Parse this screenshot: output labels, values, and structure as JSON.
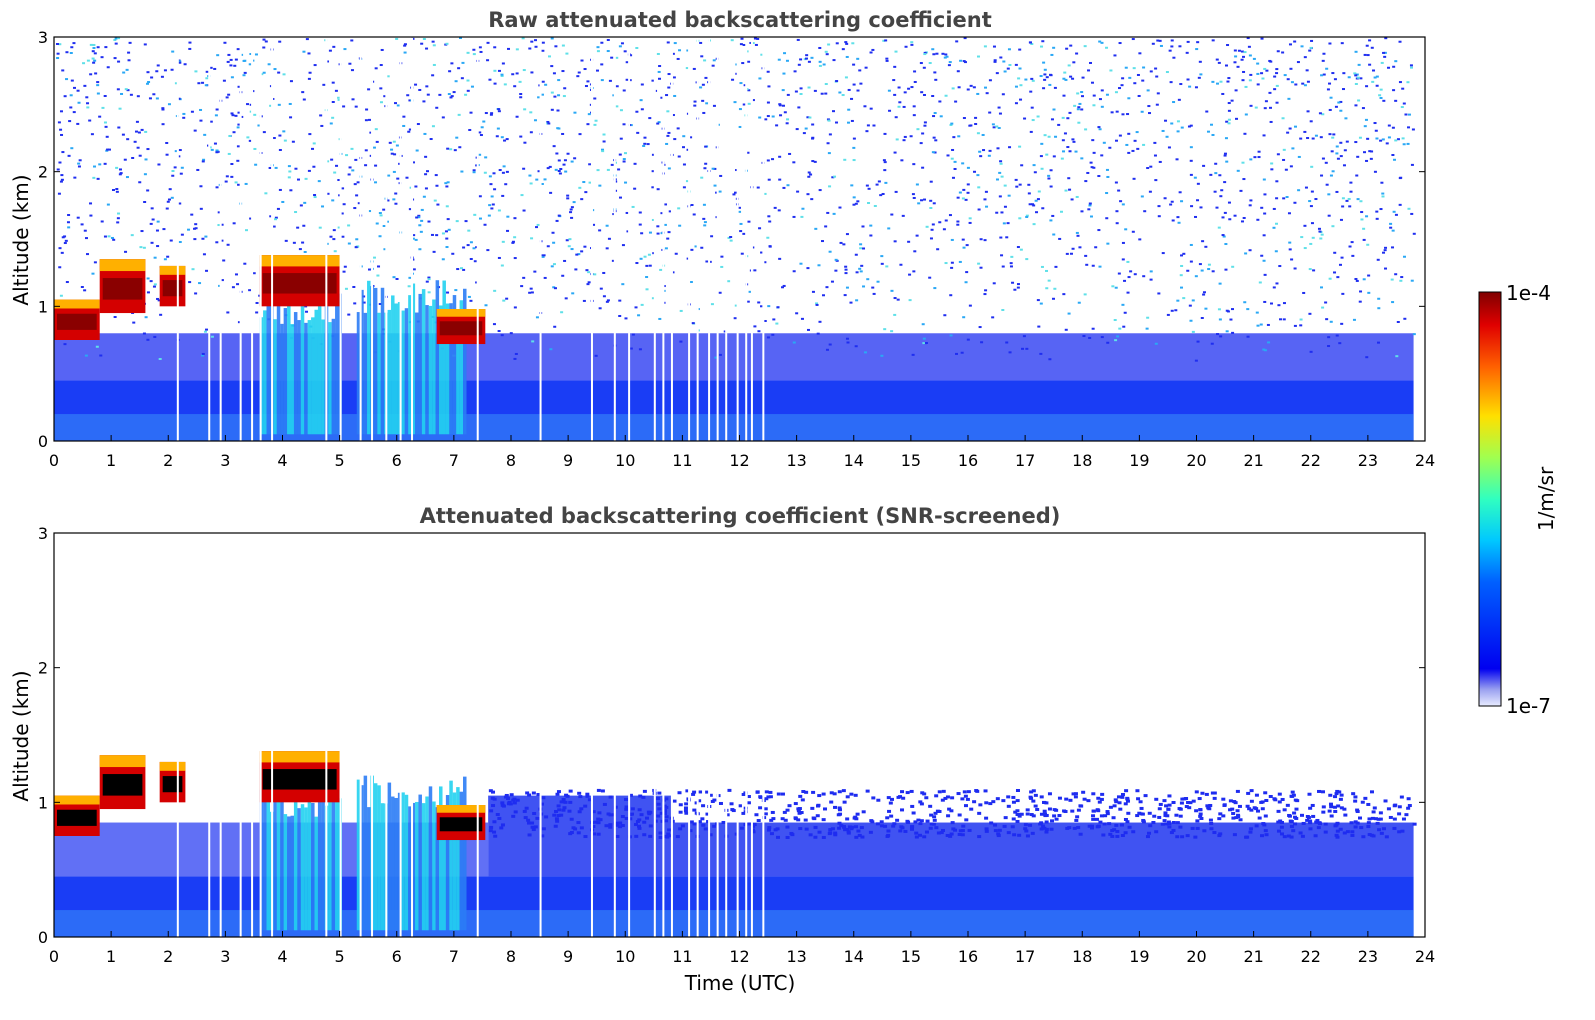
{
  "chart_data": [
    {
      "type": "heatmap",
      "title": "Raw attenuated backscattering coefficient",
      "ylabel": "Altitude (km)",
      "xlabel": "",
      "xlim": [
        0,
        24
      ],
      "ylim": [
        0,
        3
      ],
      "x_ticks": [
        "0",
        "1",
        "2",
        "3",
        "4",
        "5",
        "6",
        "7",
        "8",
        "9",
        "10",
        "11",
        "12",
        "13",
        "14",
        "15",
        "16",
        "17",
        "18",
        "19",
        "20",
        "21",
        "22",
        "23",
        "24"
      ],
      "y_ticks": [
        "0",
        "1",
        "2",
        "3"
      ],
      "data_end_hour": 23.8,
      "clouds": [
        {
          "x0": 0.0,
          "x1": 0.8,
          "base_km": 0.75,
          "top_km": 1.05
        },
        {
          "x0": 0.8,
          "x1": 1.6,
          "base_km": 0.95,
          "top_km": 1.35
        },
        {
          "x0": 1.85,
          "x1": 2.3,
          "base_km": 1.0,
          "top_km": 1.3
        },
        {
          "x0": 3.6,
          "x1": 5.0,
          "base_km": 1.0,
          "top_km": 1.38
        },
        {
          "x0": 6.7,
          "x1": 7.55,
          "base_km": 0.72,
          "top_km": 0.98
        }
      ],
      "precip": [
        {
          "x0": 3.6,
          "x1": 5.0,
          "top_km": 1.1
        },
        {
          "x0": 5.3,
          "x1": 7.2,
          "top_km": 1.2
        }
      ],
      "data_gaps_hours": [
        2.15,
        2.7,
        2.9,
        3.25,
        3.45,
        3.6,
        3.8,
        4.75,
        5.0,
        5.35,
        5.55,
        5.8,
        6.05,
        6.25,
        7.4,
        8.5,
        9.4,
        9.8,
        10.05,
        10.5,
        10.65,
        10.8,
        11.1,
        11.25,
        11.45,
        11.6,
        11.75,
        11.95,
        12.1,
        12.2,
        12.4
      ],
      "noise": true
    },
    {
      "type": "heatmap",
      "title": "Attenuated backscattering coefficient (SNR-screened)",
      "ylabel": "Altitude (km)",
      "xlabel": "Time (UTC)",
      "xlim": [
        0,
        24
      ],
      "ylim": [
        0,
        3
      ],
      "x_ticks": [
        "0",
        "1",
        "2",
        "3",
        "4",
        "5",
        "6",
        "7",
        "8",
        "9",
        "10",
        "11",
        "12",
        "13",
        "14",
        "15",
        "16",
        "17",
        "18",
        "19",
        "20",
        "21",
        "22",
        "23",
        "24"
      ],
      "y_ticks": [
        "0",
        "1",
        "2",
        "3"
      ],
      "data_end_hour": 23.8,
      "clouds": [
        {
          "x0": 0.0,
          "x1": 0.8,
          "base_km": 0.75,
          "top_km": 1.05
        },
        {
          "x0": 0.8,
          "x1": 1.6,
          "base_km": 0.95,
          "top_km": 1.35
        },
        {
          "x0": 1.85,
          "x1": 2.3,
          "base_km": 1.0,
          "top_km": 1.3
        },
        {
          "x0": 3.6,
          "x1": 5.0,
          "base_km": 1.0,
          "top_km": 1.38
        },
        {
          "x0": 6.7,
          "x1": 7.55,
          "base_km": 0.72,
          "top_km": 0.98
        }
      ],
      "precip": [
        {
          "x0": 3.6,
          "x1": 5.0,
          "top_km": 1.1
        },
        {
          "x0": 5.3,
          "x1": 7.2,
          "top_km": 1.2
        }
      ],
      "data_gaps_hours": [
        2.15,
        2.7,
        2.9,
        3.25,
        3.45,
        3.6,
        3.8,
        4.75,
        5.0,
        5.35,
        5.55,
        5.8,
        6.05,
        6.25,
        7.4,
        8.5,
        9.4,
        9.8,
        10.05,
        10.5,
        10.65,
        10.8,
        11.1,
        11.25,
        11.45,
        11.6,
        11.75,
        11.95,
        12.1,
        12.2,
        12.4
      ],
      "noise": false
    }
  ],
  "colorbar": {
    "label": "1/m/sr",
    "max_label": "1e-4",
    "min_label": "1e-7",
    "colormap": "jet",
    "scale": "log"
  },
  "colors": {
    "title": "#444444",
    "axis": "#000000"
  }
}
